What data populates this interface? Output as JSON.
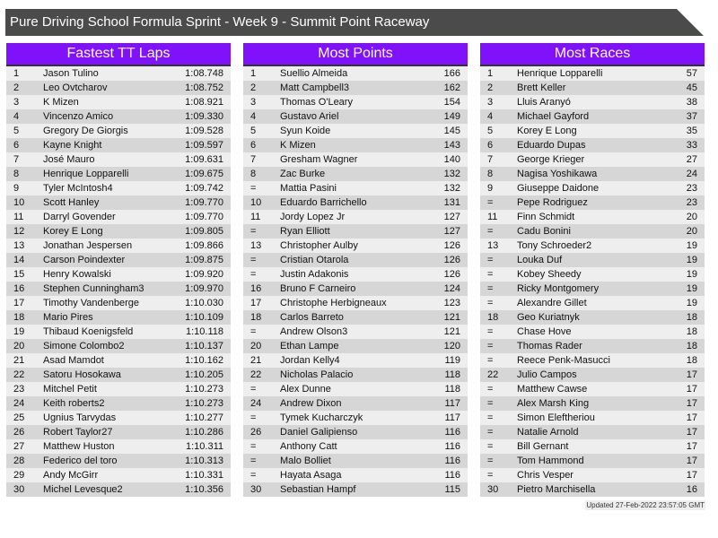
{
  "title": "Pure Driving School Formula Sprint - Week 9 - Summit Point Raceway",
  "updated": "Updated 27-Feb-2022 23:57:05 GMT",
  "colors": {
    "header_bg": "#8012fb",
    "title_bg": "#4b4b4b",
    "row_light": "#eeeeee",
    "row_dark": "#d6d6d6"
  },
  "panels": [
    {
      "title": "Fastest TT Laps",
      "rows": [
        [
          "1",
          "Jason Tulino",
          "1:08.748"
        ],
        [
          "2",
          "Leo Ovtcharov",
          "1:08.752"
        ],
        [
          "3",
          "K Mizen",
          "1:08.921"
        ],
        [
          "4",
          "Vincenzo Amico",
          "1:09.330"
        ],
        [
          "5",
          "Gregory De Giorgis",
          "1:09.528"
        ],
        [
          "6",
          "Kayne Knight",
          "1:09.597"
        ],
        [
          "7",
          "José Mauro",
          "1:09.631"
        ],
        [
          "8",
          "Henrique Lopparelli",
          "1:09.675"
        ],
        [
          "9",
          "Tyler McIntosh4",
          "1:09.742"
        ],
        [
          "10",
          "Scott Hanley",
          "1:09.770"
        ],
        [
          "11",
          "Darryl Govender",
          "1:09.770"
        ],
        [
          "12",
          "Korey E Long",
          "1:09.805"
        ],
        [
          "13",
          "Jonathan Jespersen",
          "1:09.866"
        ],
        [
          "14",
          "Carson Poindexter",
          "1:09.875"
        ],
        [
          "15",
          "Henry Kowalski",
          "1:09.920"
        ],
        [
          "16",
          "Stephen Cunningham3",
          "1:09.970"
        ],
        [
          "17",
          "Timothy Vandenberge",
          "1:10.030"
        ],
        [
          "18",
          "Mario Pires",
          "1:10.109"
        ],
        [
          "19",
          "Thibaud Koenigsfeld",
          "1:10.118"
        ],
        [
          "20",
          "Simone Colombo2",
          "1:10.137"
        ],
        [
          "21",
          "Asad Mamdot",
          "1:10.162"
        ],
        [
          "22",
          "Satoru Hosokawa",
          "1:10.205"
        ],
        [
          "23",
          "Mitchel Petit",
          "1:10.273"
        ],
        [
          "24",
          "Keith roberts2",
          "1:10.273"
        ],
        [
          "25",
          "Ugnius Tarvydas",
          "1:10.277"
        ],
        [
          "26",
          "Robert Taylor27",
          "1:10.286"
        ],
        [
          "27",
          "Matthew Huston",
          "1:10.311"
        ],
        [
          "28",
          "Federico del toro",
          "1:10.313"
        ],
        [
          "29",
          "Andy McGirr",
          "1:10.331"
        ],
        [
          "30",
          "Michel Levesque2",
          "1:10.356"
        ]
      ]
    },
    {
      "title": "Most Points",
      "rows": [
        [
          "1",
          "Suellio Almeida",
          "166"
        ],
        [
          "2",
          "Matt Campbell3",
          "162"
        ],
        [
          "3",
          "Thomas O'Leary",
          "154"
        ],
        [
          "4",
          "Gustavo Ariel",
          "149"
        ],
        [
          "5",
          "Syun Koide",
          "145"
        ],
        [
          "6",
          "K Mizen",
          "143"
        ],
        [
          "7",
          "Gresham Wagner",
          "140"
        ],
        [
          "8",
          "Zac Burke",
          "132"
        ],
        [
          "=",
          "Mattia Pasini",
          "132"
        ],
        [
          "10",
          "Eduardo Barrichello",
          "131"
        ],
        [
          "11",
          "Jordy Lopez Jr",
          "127"
        ],
        [
          "=",
          "Ryan Elliott",
          "127"
        ],
        [
          "13",
          "Christopher Aulby",
          "126"
        ],
        [
          "=",
          "Cristian Otarola",
          "126"
        ],
        [
          "=",
          "Justin Adakonis",
          "126"
        ],
        [
          "16",
          "Bruno F Carneiro",
          "124"
        ],
        [
          "17",
          "Christophe Herbigneaux",
          "123"
        ],
        [
          "18",
          "Carlos Barreto",
          "121"
        ],
        [
          "=",
          "Andrew Olson3",
          "121"
        ],
        [
          "20",
          "Ethan Lampe",
          "120"
        ],
        [
          "21",
          "Jordan Kelly4",
          "119"
        ],
        [
          "22",
          "Nicholas Palacio",
          "118"
        ],
        [
          "=",
          "Alex Dunne",
          "118"
        ],
        [
          "24",
          "Andrew Dixon",
          "117"
        ],
        [
          "=",
          "Tymek Kucharczyk",
          "117"
        ],
        [
          "26",
          "Daniel Galipienso",
          "116"
        ],
        [
          "=",
          "Anthony Catt",
          "116"
        ],
        [
          "=",
          "Malo Bolliet",
          "116"
        ],
        [
          "=",
          "Hayata Asaga",
          "116"
        ],
        [
          "30",
          "Sebastian Hampf",
          "115"
        ]
      ]
    },
    {
      "title": "Most Races",
      "rows": [
        [
          "1",
          "Henrique Lopparelli",
          "57"
        ],
        [
          "2",
          "Brett Keller",
          "45"
        ],
        [
          "3",
          "Lluis Aranyó",
          "38"
        ],
        [
          "4",
          "Michael Gayford",
          "37"
        ],
        [
          "5",
          "Korey E Long",
          "35"
        ],
        [
          "6",
          "Eduardo Dupas",
          "33"
        ],
        [
          "7",
          "George Krieger",
          "27"
        ],
        [
          "8",
          "Nagisa Yoshikawa",
          "24"
        ],
        [
          "9",
          "Giuseppe Daidone",
          "23"
        ],
        [
          "=",
          "Pepe Rodriguez",
          "23"
        ],
        [
          "11",
          "Finn Schmidt",
          "20"
        ],
        [
          "=",
          "Cadu Bonini",
          "20"
        ],
        [
          "13",
          "Tony Schroeder2",
          "19"
        ],
        [
          "=",
          "Louka Duf",
          "19"
        ],
        [
          "=",
          "Kobey Sheedy",
          "19"
        ],
        [
          "=",
          "Ricky Montgomery",
          "19"
        ],
        [
          "=",
          "Alexandre Gillet",
          "19"
        ],
        [
          "18",
          "Geo Kuriatnyk",
          "18"
        ],
        [
          "=",
          "Chase Hove",
          "18"
        ],
        [
          "=",
          "Thomas Rader",
          "18"
        ],
        [
          "=",
          "Reece Penk-Masucci",
          "18"
        ],
        [
          "22",
          "Julio Campos",
          "17"
        ],
        [
          "=",
          "Matthew Cawse",
          "17"
        ],
        [
          "=",
          "Alex Marsh King",
          "17"
        ],
        [
          "=",
          "Simon Eleftheriou",
          "17"
        ],
        [
          "=",
          "Natalie Arnold",
          "17"
        ],
        [
          "=",
          "Bill Gernant",
          "17"
        ],
        [
          "=",
          "Tom Hammond",
          "17"
        ],
        [
          "=",
          "Chris Vesper",
          "17"
        ],
        [
          "30",
          "Pietro Marchisella",
          "16"
        ]
      ]
    }
  ]
}
